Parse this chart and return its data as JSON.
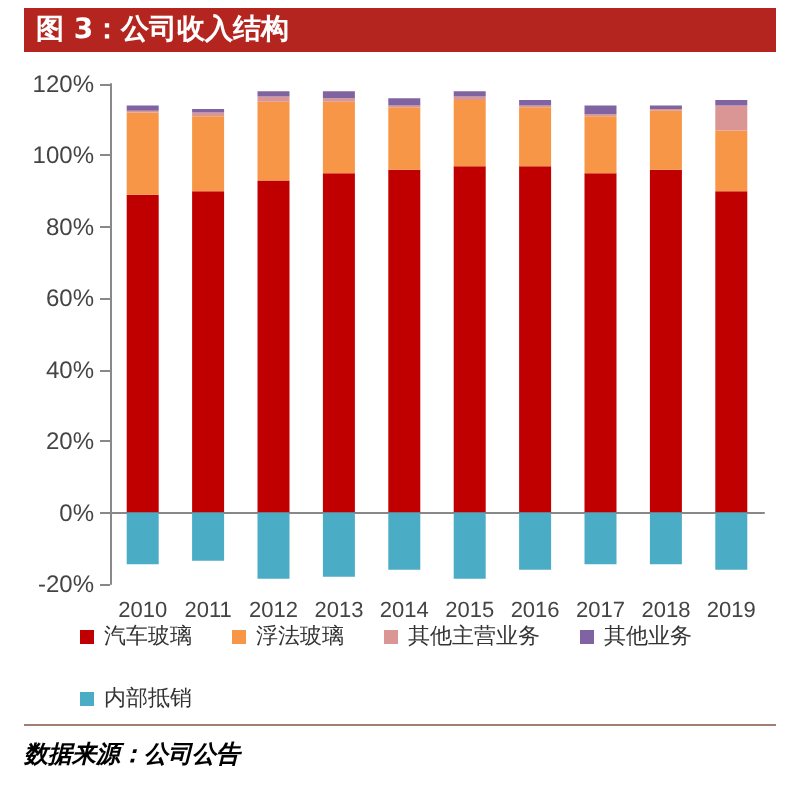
{
  "chart_data": {
    "type": "bar",
    "title": "图 3：公司收入结构",
    "stacked": true,
    "categories": [
      "2010",
      "2011",
      "2012",
      "2013",
      "2014",
      "2015",
      "2016",
      "2017",
      "2018",
      "2019"
    ],
    "series": [
      {
        "name": "汽车玻璃",
        "color": "#c00000",
        "values": [
          89,
          90,
          93,
          95,
          96,
          97,
          97,
          95,
          96,
          90
        ]
      },
      {
        "name": "浮法玻璃",
        "color": "#f79646",
        "values": [
          23,
          21,
          22,
          20,
          17.5,
          18.5,
          16.5,
          16,
          16.5,
          17
        ]
      },
      {
        "name": "其他主营业务",
        "color": "#d99694",
        "values": [
          0.5,
          1,
          1.5,
          1,
          0.5,
          1,
          0.5,
          0.5,
          0.5,
          7
        ]
      },
      {
        "name": "其他业务",
        "color": "#8064a2",
        "values": [
          1.5,
          1,
          1.5,
          2,
          2,
          1.5,
          1.5,
          2.5,
          1,
          1.5
        ]
      },
      {
        "name": "内部抵销",
        "color": "#4bacc6",
        "values": [
          -14.5,
          -13.5,
          -18.5,
          -18,
          -16,
          -18.5,
          -16,
          -14.5,
          -14.5,
          -16
        ]
      }
    ],
    "ylim": [
      -20,
      120
    ],
    "yticks": [
      {
        "value": -20,
        "label": "-20%"
      },
      {
        "value": 0,
        "label": "0%"
      },
      {
        "value": 20,
        "label": "20%"
      },
      {
        "value": 40,
        "label": "40%"
      },
      {
        "value": 60,
        "label": "60%"
      },
      {
        "value": 80,
        "label": "80%"
      },
      {
        "value": 100,
        "label": "100%"
      },
      {
        "value": 120,
        "label": "120%"
      }
    ],
    "legend": "bottom",
    "annotations": [
      "数据来源：公司公告"
    ]
  }
}
